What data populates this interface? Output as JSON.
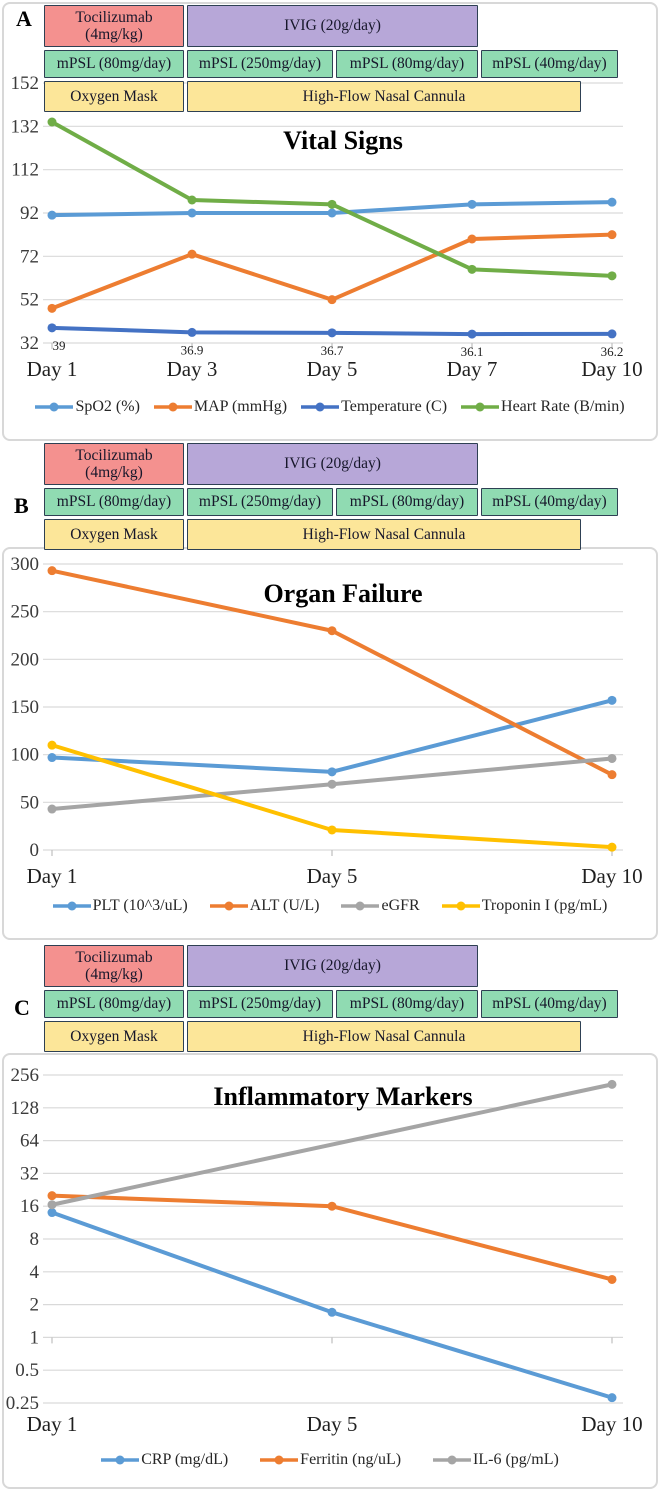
{
  "colors": {
    "grid": "#D9D9D9",
    "axis_tick": "#BFBFBF",
    "panel_border": "#D8D8D8",
    "bar_border": "#2E4053",
    "bars": {
      "tocilizumab": "#F4918F",
      "ivig": "#B7A7D8",
      "mpsl": "#90DBB2",
      "oxygen": "#FCE699"
    },
    "series": {
      "blue": "#5B9BD5",
      "orange": "#ED7D31",
      "dark_blue": "#4472C4",
      "green": "#70AD47",
      "gray": "#A5A5A5",
      "yellow": "#FFC000"
    }
  },
  "panels": [
    {
      "label": "A"
    },
    {
      "label": "B"
    },
    {
      "label": "C"
    }
  ],
  "treatments": {
    "rows": [
      [
        {
          "label_lines": [
            "Tocilizumab",
            "(4mg/kg)"
          ],
          "color": "tocilizumab",
          "span": [
            0,
            1
          ]
        },
        {
          "label_lines": [
            "IVIG (20g/day)"
          ],
          "color": "ivig",
          "span": [
            1,
            3
          ]
        }
      ],
      [
        {
          "label_lines": [
            "mPSL (80mg/day)"
          ],
          "color": "mpsl",
          "span": [
            0,
            1
          ]
        },
        {
          "label_lines": [
            "mPSL (250mg/day)"
          ],
          "color": "mpsl",
          "span": [
            1,
            2
          ]
        },
        {
          "label_lines": [
            "mPSL (80mg/day)"
          ],
          "color": "mpsl",
          "span": [
            2,
            3
          ]
        },
        {
          "label_lines": [
            "mPSL (40mg/day)"
          ],
          "color": "mpsl",
          "span": [
            3,
            4
          ]
        }
      ],
      [
        {
          "label_lines": [
            "Oxygen Mask"
          ],
          "color": "oxygen",
          "span": [
            0,
            1
          ]
        },
        {
          "label_lines": [
            "High-Flow Nasal Cannula"
          ],
          "color": "oxygen",
          "span": [
            1,
            4
          ],
          "partial_end": true
        }
      ]
    ]
  },
  "chart_data": [
    {
      "type": "line",
      "title": "Vital Signs",
      "categories": [
        "Day 1",
        "Day 3",
        "Day 5",
        "Day 7",
        "Day 10"
      ],
      "y_axis": {
        "scale": "linear",
        "min": 32,
        "max": 152,
        "step": 20
      },
      "grid": true,
      "legend_position": "bottom",
      "series": [
        {
          "name": "SpO2 (%)",
          "color": "blue",
          "values": [
            91,
            92,
            92,
            96,
            97
          ]
        },
        {
          "name": "MAP (mmHg)",
          "color": "orange",
          "values": [
            48,
            73,
            52,
            80,
            82
          ]
        },
        {
          "name": "Temperature (C)",
          "color": "dark_blue",
          "values": [
            39,
            36.9,
            36.7,
            36.1,
            36.2
          ],
          "data_labels": [
            "39",
            "36.9",
            "36.7",
            "36.1",
            "36.2"
          ]
        },
        {
          "name": "Heart Rate (B/min)",
          "color": "green",
          "values": [
            134,
            98,
            96,
            66,
            63
          ]
        }
      ]
    },
    {
      "type": "line",
      "title": "Organ Failure",
      "categories": [
        "Day 1",
        "Day 5",
        "Day 10"
      ],
      "y_axis": {
        "scale": "linear",
        "min": 0,
        "max": 300,
        "step": 50
      },
      "grid": true,
      "legend_position": "bottom",
      "series": [
        {
          "name": "PLT (10^3/uL)",
          "color": "blue",
          "values": [
            97,
            82,
            157
          ]
        },
        {
          "name": "ALT (U/L)",
          "color": "orange",
          "values": [
            293,
            230,
            79
          ]
        },
        {
          "name": "eGFR",
          "color": "gray",
          "values": [
            43,
            69,
            96
          ]
        },
        {
          "name": "Troponin I (pg/mL)",
          "color": "yellow",
          "values": [
            110,
            21,
            3
          ]
        }
      ]
    },
    {
      "type": "line",
      "title": "Inflammatory Markers",
      "categories": [
        "Day 1",
        "Day 5",
        "Day 10"
      ],
      "y_axis": {
        "scale": "log2",
        "ticks": [
          256,
          128,
          64,
          32,
          16,
          8,
          4,
          2,
          1,
          0.5,
          0.25
        ]
      },
      "grid": true,
      "legend_position": "bottom",
      "series": [
        {
          "name": "CRP (mg/dL)",
          "color": "blue",
          "values": [
            14,
            1.7,
            0.28
          ]
        },
        {
          "name": "Ferritin (ng/uL)",
          "color": "orange",
          "values": [
            20,
            16,
            3.4
          ]
        },
        {
          "name": "IL-6 (pg/mL)",
          "color": "gray",
          "values": [
            16.5,
            null,
            210
          ]
        }
      ]
    }
  ]
}
